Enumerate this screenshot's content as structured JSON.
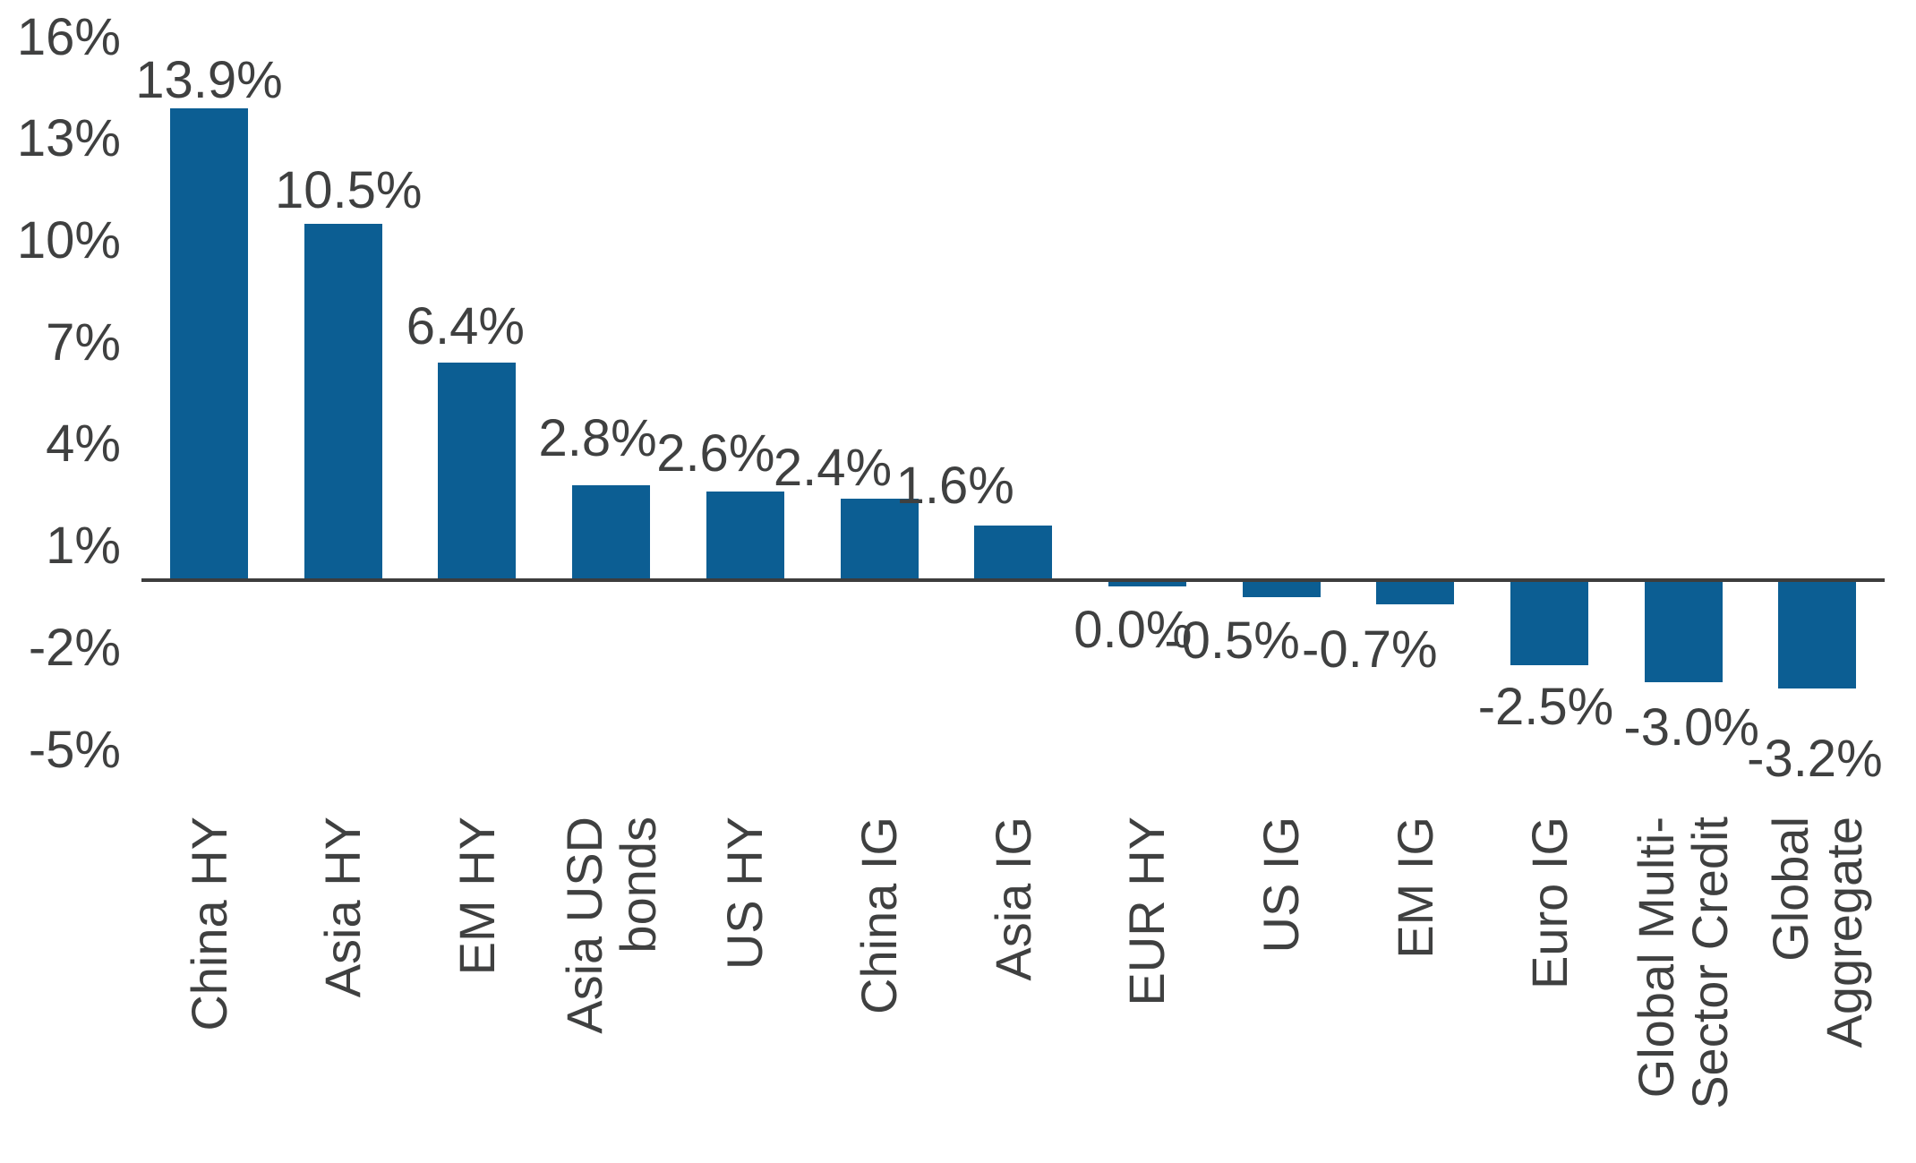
{
  "chart_data": {
    "type": "bar",
    "title": "",
    "xlabel": "",
    "ylabel": "",
    "categories": [
      "China HY",
      "Asia HY",
      "EM HY",
      "Asia USD\nbonds",
      "US HY",
      "China IG",
      "Asia IG",
      "EUR HY",
      "US IG",
      "EM IG",
      "Euro IG",
      "Global Multi-\nSector Credit",
      "Global\nAggregate"
    ],
    "values": [
      13.9,
      10.5,
      6.4,
      2.8,
      2.6,
      2.4,
      1.6,
      0.0,
      -0.5,
      -0.7,
      -2.5,
      -3.0,
      -3.2
    ],
    "value_labels": [
      "13.9%",
      "10.5%",
      "6.4%",
      "2.8%",
      "2.6%",
      "2.4%",
      "1.6%",
      "0.0%",
      "-0.5%",
      "-0.7%",
      "-2.5%",
      "-3.0%",
      "-3.2%"
    ],
    "y_ticks": [
      {
        "label": "16%",
        "value": 16
      },
      {
        "label": "13%",
        "value": 13
      },
      {
        "label": "10%",
        "value": 10
      },
      {
        "label": "7%",
        "value": 7
      },
      {
        "label": "4%",
        "value": 4
      },
      {
        "label": "1%",
        "value": 1
      },
      {
        "label": "-2%",
        "value": -2
      },
      {
        "label": "-5%",
        "value": -5
      }
    ],
    "ylim": [
      -5,
      16
    ],
    "grid": false,
    "legend": null,
    "bar_color": "#0c5e93",
    "text_color": "#3f4040",
    "axis_color": "#3d3d3d"
  }
}
